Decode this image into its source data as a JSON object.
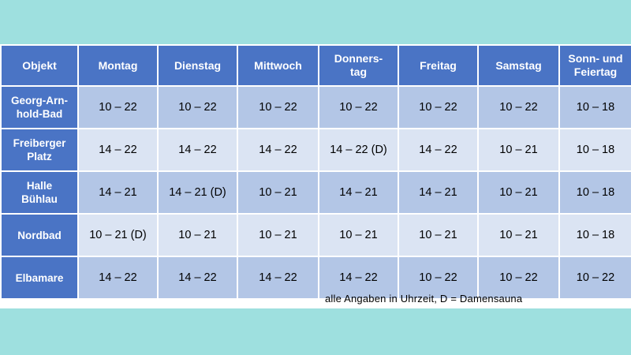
{
  "table": {
    "headers": [
      "Objekt",
      "Montag",
      "Dienstag",
      "Mittwoch",
      "Donners-\ntag",
      "Freitag",
      "Samstag",
      "Sonn- und\nFeiertag"
    ],
    "rows": [
      {
        "name": "Georg-Arn-\nhold-Bad",
        "cells": [
          "10 – 22",
          "10 – 22",
          "10 – 22",
          "10 – 22",
          "10 – 22",
          "10 – 22",
          "10 – 18"
        ]
      },
      {
        "name": "Freiberger\nPlatz",
        "cells": [
          "14 – 22",
          "14 – 22",
          "14 – 22",
          "14 – 22 (D)",
          "14 – 22",
          "10 – 21",
          "10 – 18"
        ]
      },
      {
        "name": "Halle\nBühlau",
        "cells": [
          "14 – 21",
          "14 – 21 (D)",
          "10 – 21",
          "14 – 21",
          "14 – 21",
          "10 – 21",
          "10 – 18"
        ]
      },
      {
        "name": "Nordbad",
        "cells": [
          "10 – 21 (D)",
          "10 – 21",
          "10 – 21",
          "10 – 21",
          "10 – 21",
          "10 – 21",
          "10 – 18"
        ]
      },
      {
        "name": "Elbamare",
        "cells": [
          "14 – 22",
          "14 – 22",
          "14 – 22",
          "14 – 22",
          "10 – 22",
          "10 – 22",
          "10 – 22"
        ]
      }
    ]
  },
  "footnote": "alle Angaben in Uhrzeit, D = Damensauna",
  "colors": {
    "background": "#9ee0df",
    "header": "#4a74c5",
    "row_dark": "#b3c6e6",
    "row_light": "#dbe4f3"
  }
}
